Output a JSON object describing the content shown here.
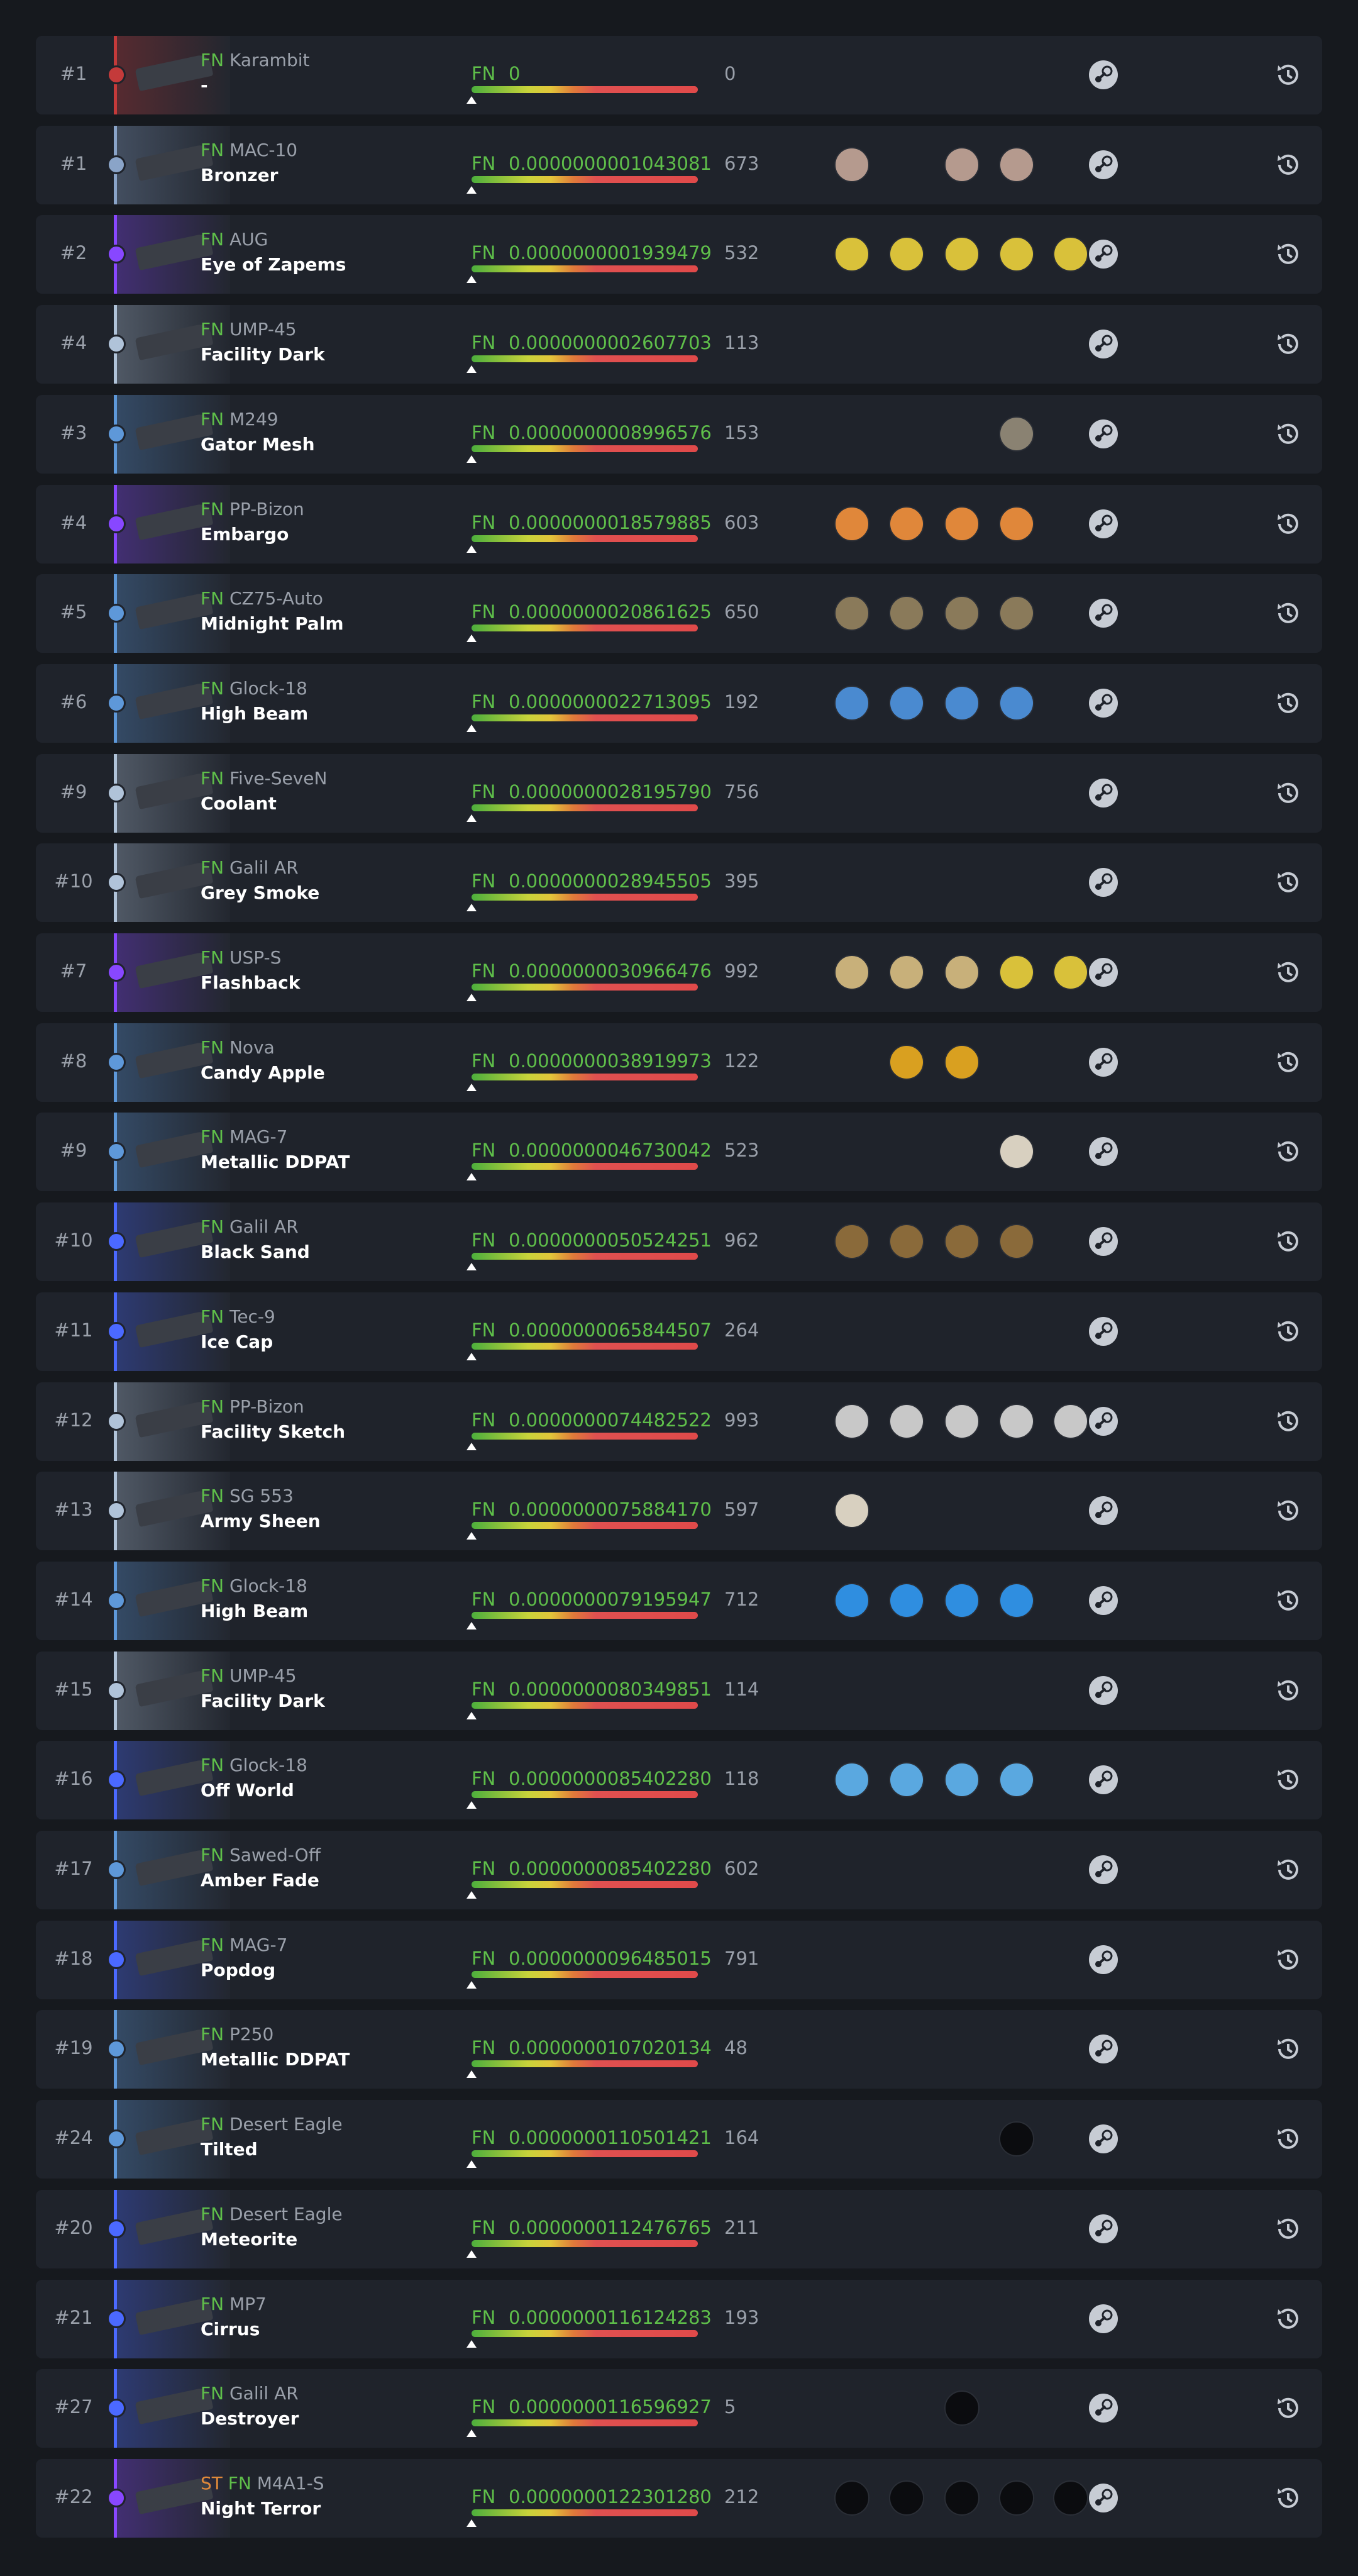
{
  "rows": [
    {
      "rank": "#1",
      "stattrak": null,
      "wear": "FN",
      "weapon": "Karambit",
      "skin": "-",
      "float": "0",
      "pattern": 0,
      "color": "#c43a3a",
      "stickers": [
        null,
        null,
        null,
        null,
        null
      ]
    },
    {
      "rank": "#1",
      "stattrak": null,
      "wear": "FN",
      "weapon": "MAC-10",
      "skin": "Bronzer",
      "float": "0.0000000001043081",
      "pattern": 673,
      "color": "#8aa4c8",
      "stickers": [
        "#b59a8e",
        null,
        "#b59a8e",
        "#b59a8e",
        null
      ]
    },
    {
      "rank": "#2",
      "stattrak": null,
      "wear": "FN",
      "weapon": "AUG",
      "skin": "Eye of Zapems",
      "float": "0.0000000001939479",
      "pattern": 532,
      "color": "#8847ff",
      "stickers": [
        "#d9c13a",
        "#d9c13a",
        "#d9c13a",
        "#d9c13a",
        "#d9c13a"
      ]
    },
    {
      "rank": "#4",
      "stattrak": null,
      "wear": "FN",
      "weapon": "UMP-45",
      "skin": "Facility Dark",
      "float": "0.0000000002607703",
      "pattern": 113,
      "color": "#b0c3d9",
      "stickers": [
        null,
        null,
        null,
        null,
        null
      ]
    },
    {
      "rank": "#3",
      "stattrak": null,
      "wear": "FN",
      "weapon": "M249",
      "skin": "Gator Mesh",
      "float": "0.0000000008996576",
      "pattern": 153,
      "color": "#5e98d9",
      "stickers": [
        null,
        null,
        null,
        "#8a8272",
        null
      ]
    },
    {
      "rank": "#4",
      "stattrak": null,
      "wear": "FN",
      "weapon": "PP-Bizon",
      "skin": "Embargo",
      "float": "0.0000000018579885",
      "pattern": 603,
      "color": "#8847ff",
      "stickers": [
        "#e0873a",
        "#e0873a",
        "#e0873a",
        "#e0873a",
        null
      ]
    },
    {
      "rank": "#5",
      "stattrak": null,
      "wear": "FN",
      "weapon": "CZ75-Auto",
      "skin": "Midnight Palm",
      "float": "0.0000000020861625",
      "pattern": 650,
      "color": "#5e98d9",
      "stickers": [
        "#8a7a5a",
        "#8a7a5a",
        "#8a7a5a",
        "#8a7a5a",
        null
      ]
    },
    {
      "rank": "#6",
      "stattrak": null,
      "wear": "FN",
      "weapon": "Glock-18",
      "skin": "High Beam",
      "float": "0.0000000022713095",
      "pattern": 192,
      "color": "#5e98d9",
      "stickers": [
        "#4a8ad0",
        "#4a8ad0",
        "#4a8ad0",
        "#4a8ad0",
        null
      ]
    },
    {
      "rank": "#9",
      "stattrak": null,
      "wear": "FN",
      "weapon": "Five-SeveN",
      "skin": "Coolant",
      "float": "0.0000000028195790",
      "pattern": 756,
      "color": "#b0c3d9",
      "stickers": [
        null,
        null,
        null,
        null,
        null
      ]
    },
    {
      "rank": "#10",
      "stattrak": null,
      "wear": "FN",
      "weapon": "Galil AR",
      "skin": "Grey Smoke",
      "float": "0.0000000028945505",
      "pattern": 395,
      "color": "#b0c3d9",
      "stickers": [
        null,
        null,
        null,
        null,
        null
      ]
    },
    {
      "rank": "#7",
      "stattrak": null,
      "wear": "FN",
      "weapon": "USP-S",
      "skin": "Flashback",
      "float": "0.0000000030966476",
      "pattern": 992,
      "color": "#8847ff",
      "stickers": [
        "#c8b07a",
        "#c8b07a",
        "#c8b07a",
        "#d9c13a",
        "#d9c13a"
      ]
    },
    {
      "rank": "#8",
      "stattrak": null,
      "wear": "FN",
      "weapon": "Nova",
      "skin": "Candy Apple",
      "float": "0.0000000038919973",
      "pattern": 122,
      "color": "#5e98d9",
      "stickers": [
        null,
        "#d9a020",
        "#d9a020",
        null,
        null
      ]
    },
    {
      "rank": "#9",
      "stattrak": null,
      "wear": "FN",
      "weapon": "MAG-7",
      "skin": "Metallic DDPAT",
      "float": "0.0000000046730042",
      "pattern": 523,
      "color": "#5e98d9",
      "stickers": [
        null,
        null,
        null,
        "#d8d0c0",
        null
      ]
    },
    {
      "rank": "#10",
      "stattrak": null,
      "wear": "FN",
      "weapon": "Galil AR",
      "skin": "Black Sand",
      "float": "0.0000000050524251",
      "pattern": 962,
      "color": "#4b69ff",
      "stickers": [
        "#8a6a3a",
        "#8a6a3a",
        "#8a6a3a",
        "#8a6a3a",
        null
      ]
    },
    {
      "rank": "#11",
      "stattrak": null,
      "wear": "FN",
      "weapon": "Tec-9",
      "skin": "Ice Cap",
      "float": "0.0000000065844507",
      "pattern": 264,
      "color": "#4b69ff",
      "stickers": [
        null,
        null,
        null,
        null,
        null
      ]
    },
    {
      "rank": "#12",
      "stattrak": null,
      "wear": "FN",
      "weapon": "PP-Bizon",
      "skin": "Facility Sketch",
      "float": "0.0000000074482522",
      "pattern": 993,
      "color": "#b0c3d9",
      "stickers": [
        "#c8c8c8",
        "#c8c8c8",
        "#c8c8c8",
        "#c8c8c8",
        "#c8c8c8"
      ]
    },
    {
      "rank": "#13",
      "stattrak": null,
      "wear": "FN",
      "weapon": "SG 553",
      "skin": "Army Sheen",
      "float": "0.0000000075884170",
      "pattern": 597,
      "color": "#b0c3d9",
      "stickers": [
        "#d8d0c0",
        null,
        null,
        null,
        null
      ]
    },
    {
      "rank": "#14",
      "stattrak": null,
      "wear": "FN",
      "weapon": "Glock-18",
      "skin": "High Beam",
      "float": "0.0000000079195947",
      "pattern": 712,
      "color": "#5e98d9",
      "stickers": [
        "#2f8ee0",
        "#2f8ee0",
        "#2f8ee0",
        "#2f8ee0",
        null
      ]
    },
    {
      "rank": "#15",
      "stattrak": null,
      "wear": "FN",
      "weapon": "UMP-45",
      "skin": "Facility Dark",
      "float": "0.0000000080349851",
      "pattern": 114,
      "color": "#b0c3d9",
      "stickers": [
        null,
        null,
        null,
        null,
        null
      ]
    },
    {
      "rank": "#16",
      "stattrak": null,
      "wear": "FN",
      "weapon": "Glock-18",
      "skin": "Off World",
      "float": "0.0000000085402280",
      "pattern": 118,
      "color": "#4b69ff",
      "stickers": [
        "#5aa8e0",
        "#5aa8e0",
        "#5aa8e0",
        "#5aa8e0",
        null
      ]
    },
    {
      "rank": "#17",
      "stattrak": null,
      "wear": "FN",
      "weapon": "Sawed-Off",
      "skin": "Amber Fade",
      "float": "0.0000000085402280",
      "pattern": 602,
      "color": "#5e98d9",
      "stickers": [
        null,
        null,
        null,
        null,
        null
      ]
    },
    {
      "rank": "#18",
      "stattrak": null,
      "wear": "FN",
      "weapon": "MAG-7",
      "skin": "Popdog",
      "float": "0.0000000096485015",
      "pattern": 791,
      "color": "#4b69ff",
      "stickers": [
        null,
        null,
        null,
        null,
        null
      ]
    },
    {
      "rank": "#19",
      "stattrak": null,
      "wear": "FN",
      "weapon": "P250",
      "skin": "Metallic DDPAT",
      "float": "0.0000000107020134",
      "pattern": 48,
      "color": "#5e98d9",
      "stickers": [
        null,
        null,
        null,
        null,
        null
      ]
    },
    {
      "rank": "#24",
      "stattrak": null,
      "wear": "FN",
      "weapon": "Desert Eagle",
      "skin": "Tilted",
      "float": "0.0000000110501421",
      "pattern": 164,
      "color": "#5e98d9",
      "stickers": [
        null,
        null,
        null,
        "#0b0c0f",
        null
      ]
    },
    {
      "rank": "#20",
      "stattrak": null,
      "wear": "FN",
      "weapon": "Desert Eagle",
      "skin": "Meteorite",
      "float": "0.0000000112476765",
      "pattern": 211,
      "color": "#4b69ff",
      "stickers": [
        null,
        null,
        null,
        null,
        null
      ]
    },
    {
      "rank": "#21",
      "stattrak": null,
      "wear": "FN",
      "weapon": "MP7",
      "skin": "Cirrus",
      "float": "0.0000000116124283",
      "pattern": 193,
      "color": "#4b69ff",
      "stickers": [
        null,
        null,
        null,
        null,
        null
      ]
    },
    {
      "rank": "#27",
      "stattrak": null,
      "wear": "FN",
      "weapon": "Galil AR",
      "skin": "Destroyer",
      "float": "0.0000000116596927",
      "pattern": 5,
      "color": "#4b69ff",
      "stickers": [
        null,
        null,
        "#0b0c0f",
        null,
        null
      ]
    },
    {
      "rank": "#22",
      "stattrak": "ST",
      "wear": "FN",
      "weapon": "M4A1-S",
      "skin": "Night Terror",
      "float": "0.0000000122301280",
      "pattern": 212,
      "color": "#8847ff",
      "stickers": [
        "#0b0c0f",
        "#0b0c0f",
        "#0b0c0f",
        "#0b0c0f",
        "#0b0c0f"
      ]
    }
  ]
}
